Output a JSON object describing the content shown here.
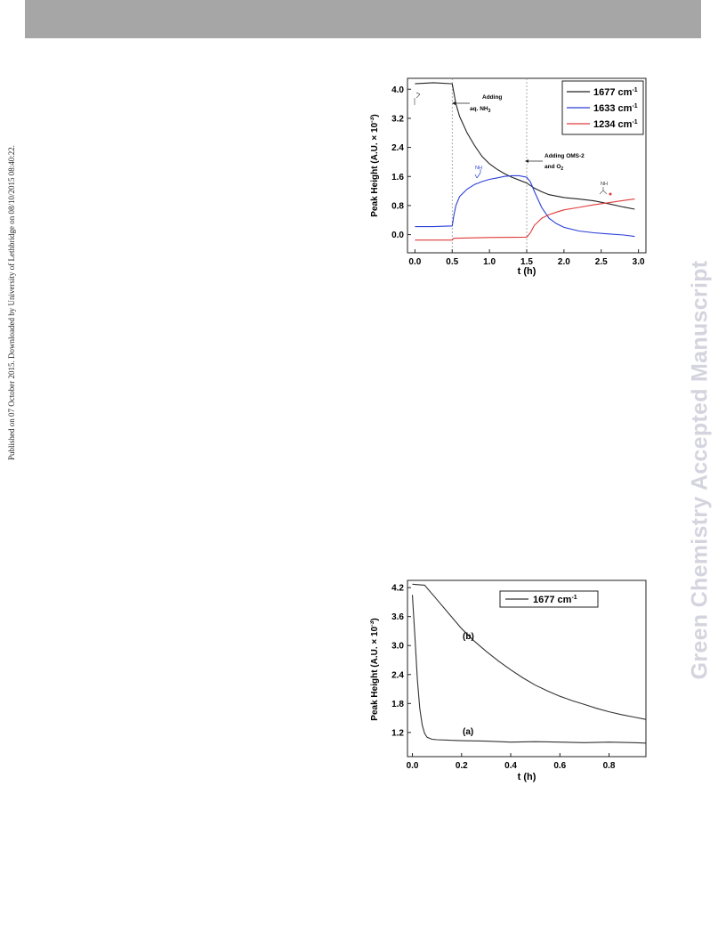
{
  "page": {
    "side_note": "Published on 07 October 2015. Downloaded by University of Lethbridge on 08/10/2015 08:40:22.",
    "watermark": "Green Chemistry Accepted Manuscript",
    "header_color": "#a6a6a6"
  },
  "chart_data": [
    {
      "type": "line",
      "xlabel": "t (h)",
      "ylabel": "Peak Height (A.U. × 10",
      "ylabel_exp": "-3",
      "ylabel_close": ")",
      "xlim": [
        -0.1,
        3.1
      ],
      "ylim": [
        -0.5,
        4.3
      ],
      "xticks": [
        "0.0",
        "0.5",
        "1.0",
        "1.5",
        "2.0",
        "2.5",
        "3.0"
      ],
      "yticks": [
        "0.0",
        "0.8",
        "1.6",
        "2.4",
        "3.2",
        "4.0"
      ],
      "xtick_values": [
        0,
        0.5,
        1.0,
        1.5,
        2.0,
        2.5,
        3.0
      ],
      "ytick_values": [
        0,
        0.8,
        1.6,
        2.4,
        3.2,
        4.0
      ],
      "legend_position": "top-right",
      "legend_unit": "cm",
      "legend_unit_exp": "-1",
      "markers_x": [
        0.5,
        1.5
      ],
      "annotations": [
        {
          "line1": "Adding",
          "line2": "aq. NH",
          "sub": "3"
        },
        {
          "line1": "Adding OMS-2",
          "line2": "and O",
          "sub": "2"
        }
      ],
      "series": [
        {
          "name": "1677",
          "color": "#222222",
          "x": [
            0,
            0.25,
            0.5,
            0.55,
            0.6,
            0.7,
            0.8,
            0.9,
            1.0,
            1.1,
            1.2,
            1.3,
            1.4,
            1.5,
            1.6,
            1.7,
            1.8,
            2.0,
            2.2,
            2.4,
            2.6,
            2.8,
            2.95
          ],
          "y": [
            4.15,
            4.18,
            4.15,
            3.6,
            3.25,
            2.8,
            2.45,
            2.15,
            1.95,
            1.8,
            1.68,
            1.58,
            1.5,
            1.42,
            1.28,
            1.18,
            1.1,
            1.02,
            0.98,
            0.93,
            0.85,
            0.76,
            0.7
          ]
        },
        {
          "name": "1633",
          "color": "#2a3fd6",
          "x": [
            0,
            0.25,
            0.5,
            0.52,
            0.55,
            0.6,
            0.7,
            0.8,
            0.9,
            1.0,
            1.1,
            1.2,
            1.3,
            1.4,
            1.5,
            1.55,
            1.6,
            1.7,
            1.8,
            1.9,
            2.0,
            2.2,
            2.4,
            2.6,
            2.8,
            2.95
          ],
          "y": [
            0.22,
            0.22,
            0.24,
            0.5,
            0.8,
            1.05,
            1.25,
            1.38,
            1.46,
            1.52,
            1.56,
            1.6,
            1.62,
            1.62,
            1.58,
            1.45,
            1.2,
            0.75,
            0.45,
            0.3,
            0.2,
            0.1,
            0.05,
            0.02,
            -0.01,
            -0.05
          ]
        },
        {
          "name": "1234",
          "color": "#e03a3a",
          "x": [
            0,
            0.3,
            0.5,
            0.52,
            1.0,
            1.5,
            1.55,
            1.6,
            1.7,
            1.8,
            1.9,
            2.0,
            2.2,
            2.4,
            2.6,
            2.8,
            2.95
          ],
          "y": [
            -0.15,
            -0.15,
            -0.15,
            -0.1,
            -0.08,
            -0.07,
            0.05,
            0.25,
            0.45,
            0.55,
            0.62,
            0.68,
            0.75,
            0.82,
            0.88,
            0.94,
            0.98
          ]
        }
      ]
    },
    {
      "type": "line",
      "xlabel": "t (h)",
      "ylabel": "Peak Height (A.U. × 10",
      "ylabel_exp": "-3",
      "ylabel_close": ")",
      "xlim": [
        -0.02,
        0.95
      ],
      "ylim": [
        0.7,
        4.35
      ],
      "xticks": [
        "0.0",
        "0.2",
        "0.4",
        "0.6",
        "0.8"
      ],
      "yticks": [
        "1.2",
        "1.8",
        "2.4",
        "3.0",
        "3.6",
        "4.2"
      ],
      "xtick_values": [
        0,
        0.2,
        0.4,
        0.6,
        0.8
      ],
      "ytick_values": [
        1.2,
        1.8,
        2.4,
        3.0,
        3.6,
        4.2
      ],
      "legend_position": "top-right",
      "legend_unit": "cm",
      "legend_unit_exp": "-1",
      "series": [
        {
          "name": "1677",
          "color": "#333333",
          "label": "(a)",
          "x": [
            0,
            0.01,
            0.02,
            0.03,
            0.04,
            0.05,
            0.06,
            0.08,
            0.1,
            0.15,
            0.2,
            0.3,
            0.4,
            0.5,
            0.6,
            0.7,
            0.8,
            0.9,
            0.95
          ],
          "y": [
            4.05,
            3.2,
            2.3,
            1.7,
            1.35,
            1.18,
            1.1,
            1.06,
            1.05,
            1.04,
            1.03,
            1.02,
            1.0,
            1.01,
            1.0,
            0.99,
            1.0,
            0.99,
            0.98
          ]
        },
        {
          "name": "1677",
          "color": "#333333",
          "label": "(b)",
          "x": [
            0,
            0.05,
            0.1,
            0.15,
            0.2,
            0.25,
            0.3,
            0.35,
            0.4,
            0.45,
            0.5,
            0.55,
            0.6,
            0.65,
            0.7,
            0.75,
            0.8,
            0.85,
            0.9,
            0.95
          ],
          "y": [
            4.27,
            4.25,
            3.95,
            3.65,
            3.35,
            3.1,
            2.88,
            2.68,
            2.5,
            2.33,
            2.18,
            2.06,
            1.95,
            1.86,
            1.78,
            1.7,
            1.63,
            1.57,
            1.52,
            1.47
          ]
        }
      ]
    }
  ]
}
